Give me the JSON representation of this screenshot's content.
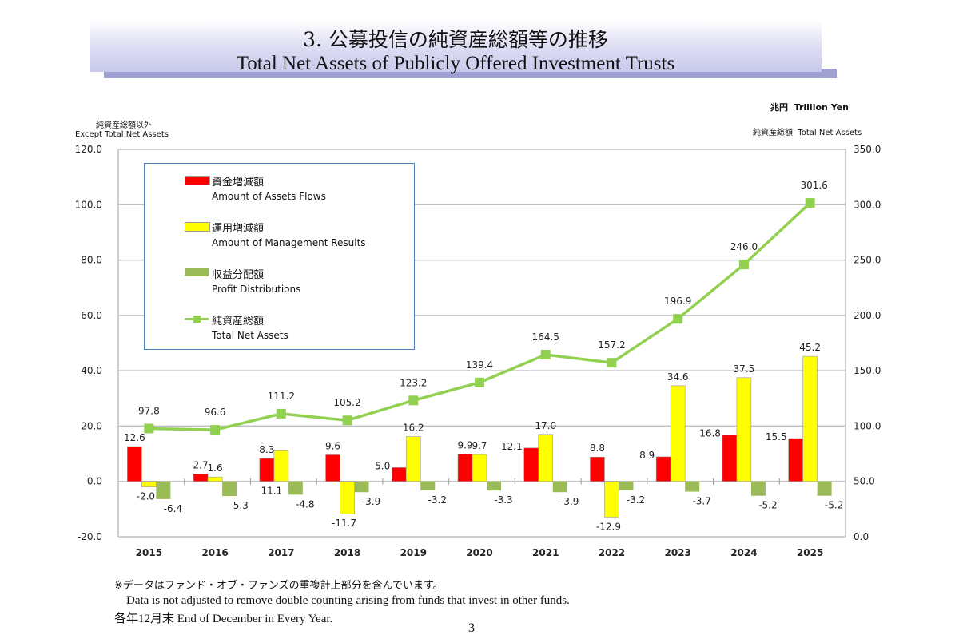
{
  "header": {
    "title_jp": "3. 公募投信の純資産総額等の推移",
    "title_en": "Total Net Assets of Publicly Offered Investment Trusts"
  },
  "unit": {
    "jp": "兆円",
    "en": "Trillion Yen"
  },
  "left_axis_label": {
    "jp": "純資産総額以外",
    "en": "Except Total Net Assets"
  },
  "right_axis_label": {
    "jp": "純資産総額",
    "en": "Total Net Assets"
  },
  "footer": {
    "note_jp": "※データはファンド・オブ・ファンズの重複計上部分を含んでいます。",
    "note_en": "Data is not adjusted to remove double counting arising from funds that invest in other funds.",
    "period": "各年12月末 End of December in Every Year.",
    "page_number": "3"
  },
  "chart_data": {
    "type": "bar+line",
    "categories": [
      "2015",
      "2016",
      "2017",
      "2018",
      "2019",
      "2020",
      "2021",
      "2022",
      "2023",
      "2024",
      "2025"
    ],
    "left_axis": {
      "ylim": [
        -20,
        120
      ],
      "ticks": [
        "-20.0",
        "0.0",
        "20.0",
        "40.0",
        "60.0",
        "80.0",
        "100.0",
        "120.0"
      ]
    },
    "right_axis": {
      "ylim": [
        0,
        350
      ],
      "ticks": [
        "0.0",
        "50.0",
        "100.0",
        "150.0",
        "200.0",
        "250.0",
        "300.0",
        "350.0"
      ]
    },
    "grid": true,
    "legend_placement": "top-left",
    "series": [
      {
        "name_jp": "資金増減額",
        "name": "Amount of Assets Flows",
        "type": "bar",
        "axis": "left",
        "color": "#ff0000",
        "values": [
          12.6,
          2.7,
          8.3,
          9.6,
          5.0,
          9.9,
          12.1,
          8.8,
          8.9,
          16.8,
          15.5
        ]
      },
      {
        "name_jp": "運用増減額",
        "name": "Amount of Management Results",
        "type": "bar",
        "axis": "left",
        "color": "#ffff00",
        "values": [
          -2.0,
          1.6,
          11.1,
          -11.7,
          16.2,
          9.7,
          17.0,
          -12.9,
          34.6,
          37.5,
          45.2
        ]
      },
      {
        "name_jp": "収益分配額",
        "name": "Profit Distributions",
        "type": "bar",
        "axis": "left",
        "color": "#9bbb59",
        "values": [
          -6.4,
          -5.3,
          -4.8,
          -3.9,
          -3.2,
          -3.3,
          -3.9,
          -3.2,
          -3.7,
          -5.2,
          -5.2
        ]
      },
      {
        "name_jp": "純資産総額",
        "name": "Total Net Assets",
        "type": "line",
        "axis": "right",
        "color": "#92d050",
        "values": [
          97.8,
          96.6,
          111.2,
          105.2,
          123.2,
          139.4,
          164.5,
          157.2,
          196.9,
          246.0,
          301.6
        ]
      }
    ]
  }
}
